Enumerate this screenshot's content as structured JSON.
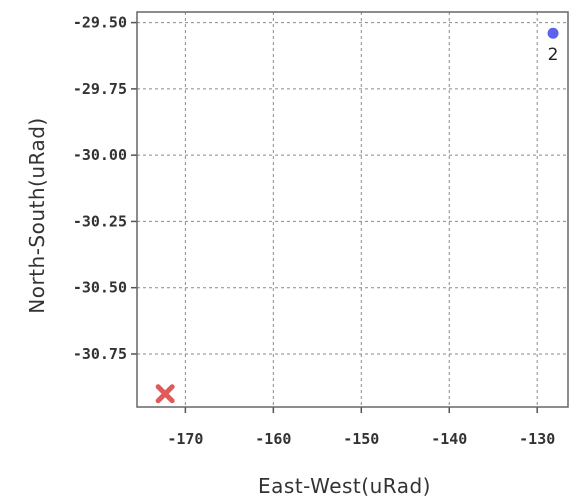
{
  "chart_data": {
    "type": "scatter",
    "title": "",
    "xlabel": "East-West(uRad)",
    "ylabel": "North-South(uRad)",
    "xlim": [
      -175.5,
      -126.5
    ],
    "ylim": [
      -30.95,
      -29.46
    ],
    "xticks": [
      -170,
      -160,
      -150,
      -140,
      -130
    ],
    "yticks": [
      -29.5,
      -29.75,
      -30.0,
      -30.25,
      -30.5,
      -30.75
    ],
    "x_tick_labels": [
      "-170",
      "-160",
      "-150",
      "-140",
      "-130"
    ],
    "y_tick_labels": [
      "-29.50",
      "-29.75",
      "-30.00",
      "-30.25",
      "-30.50",
      "-30.75"
    ],
    "grid": true,
    "points": [
      {
        "label": "",
        "x": -172.3,
        "y": -30.9,
        "marker": "x",
        "color": "#e05a5a"
      },
      {
        "label": "2",
        "x": -128.2,
        "y": -29.54,
        "marker": "circle",
        "color": "#5b63ee"
      }
    ]
  }
}
